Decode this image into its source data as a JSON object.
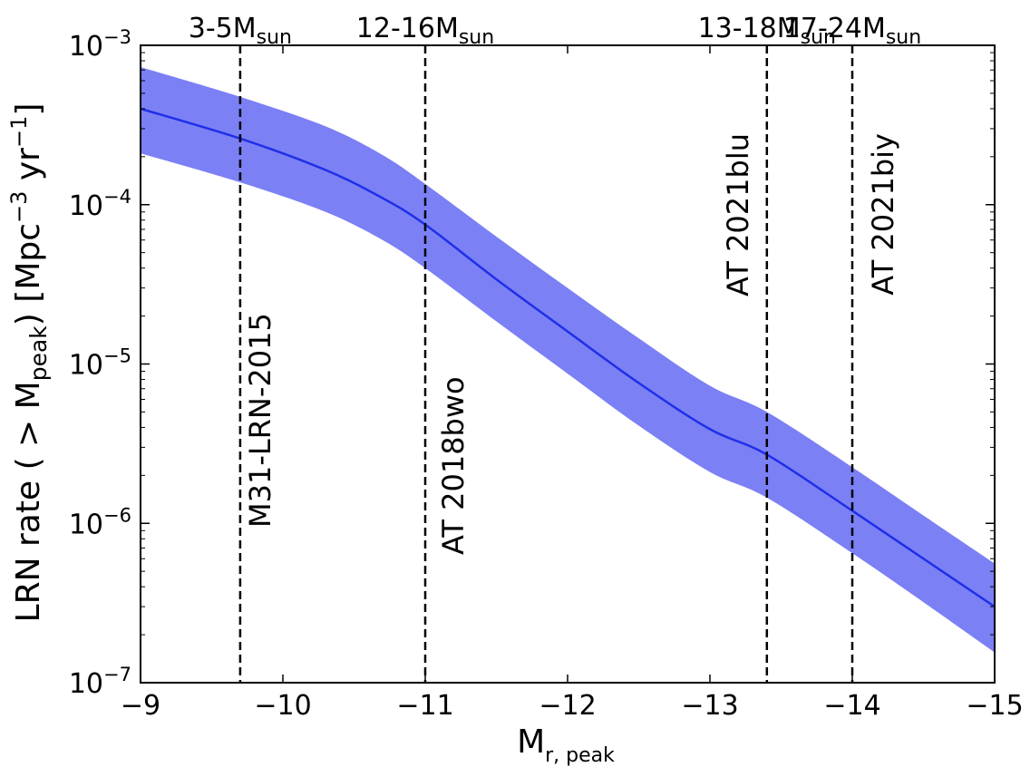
{
  "chart_data": {
    "type": "line",
    "x_axis": {
      "label_main": "M",
      "label_sub": "r, peak",
      "range": [
        -9,
        -15
      ],
      "ticks": [
        -9,
        -10,
        -11,
        -12,
        -13,
        -14,
        -15
      ],
      "tick_labels": [
        "−9",
        "−10",
        "−11",
        "−12",
        "−13",
        "−14",
        "−15"
      ]
    },
    "y_axis": {
      "scale": "log",
      "range": [
        1e-07,
        0.001
      ],
      "label_prefix": "LRN rate ( > M",
      "label_prefix_sub": "peak",
      "label_mid": ")  [Mpc",
      "label_sup1": "−3",
      "label_yr": " yr",
      "label_sup2": "−1",
      "label_close": "]",
      "ticks": [
        {
          "value": 0.001,
          "base": "10",
          "exp": "−3"
        },
        {
          "value": 0.0001,
          "base": "10",
          "exp": "−4"
        },
        {
          "value": 1e-05,
          "base": "10",
          "exp": "−5"
        },
        {
          "value": 1e-06,
          "base": "10",
          "exp": "−6"
        },
        {
          "value": 1e-07,
          "base": "10",
          "exp": "−7"
        }
      ]
    },
    "series": [
      {
        "name": "LRN rate",
        "color": "#1f2fe8",
        "band_color": "#7b80f5",
        "x": [
          -9,
          -9.7,
          -10.3,
          -10.7,
          -11,
          -11.5,
          -12,
          -12.5,
          -13,
          -13.4,
          -14,
          -14.5,
          -15
        ],
        "y": [
          0.0004,
          0.00026,
          0.000165,
          0.00011,
          7.5e-05,
          3.4e-05,
          1.6e-05,
          7.6e-06,
          3.9e-06,
          2.7e-06,
          1.2e-06,
          6e-07,
          3e-07
        ],
        "y_upper": [
          0.00073,
          0.000475,
          0.00031,
          0.000205,
          0.000135,
          6.3e-05,
          3e-05,
          1.45e-05,
          7.3e-06,
          5e-06,
          2.25e-06,
          1.12e-06,
          5.6e-07
        ],
        "y_lower": [
          0.00021,
          0.000138,
          9e-05,
          6e-05,
          4e-05,
          1.85e-05,
          8.7e-06,
          4.1e-06,
          2.1e-06,
          1.45e-06,
          6.5e-07,
          3.2e-07,
          1.55e-07
        ]
      }
    ],
    "events": [
      {
        "x": -9.7,
        "name": "M31-LRN-2015",
        "mass_main": "3-5M",
        "mass_sub": "sun"
      },
      {
        "x": -11,
        "name": "AT 2018bwo",
        "mass_main": "12-16M",
        "mass_sub": "sun"
      },
      {
        "x": -13.4,
        "name": "AT 2021blu",
        "mass_main": "13-18M",
        "mass_sub": "sun"
      },
      {
        "x": -14,
        "name": "AT 2021biy",
        "mass_main": "17-24M",
        "mass_sub": "sun"
      }
    ]
  }
}
